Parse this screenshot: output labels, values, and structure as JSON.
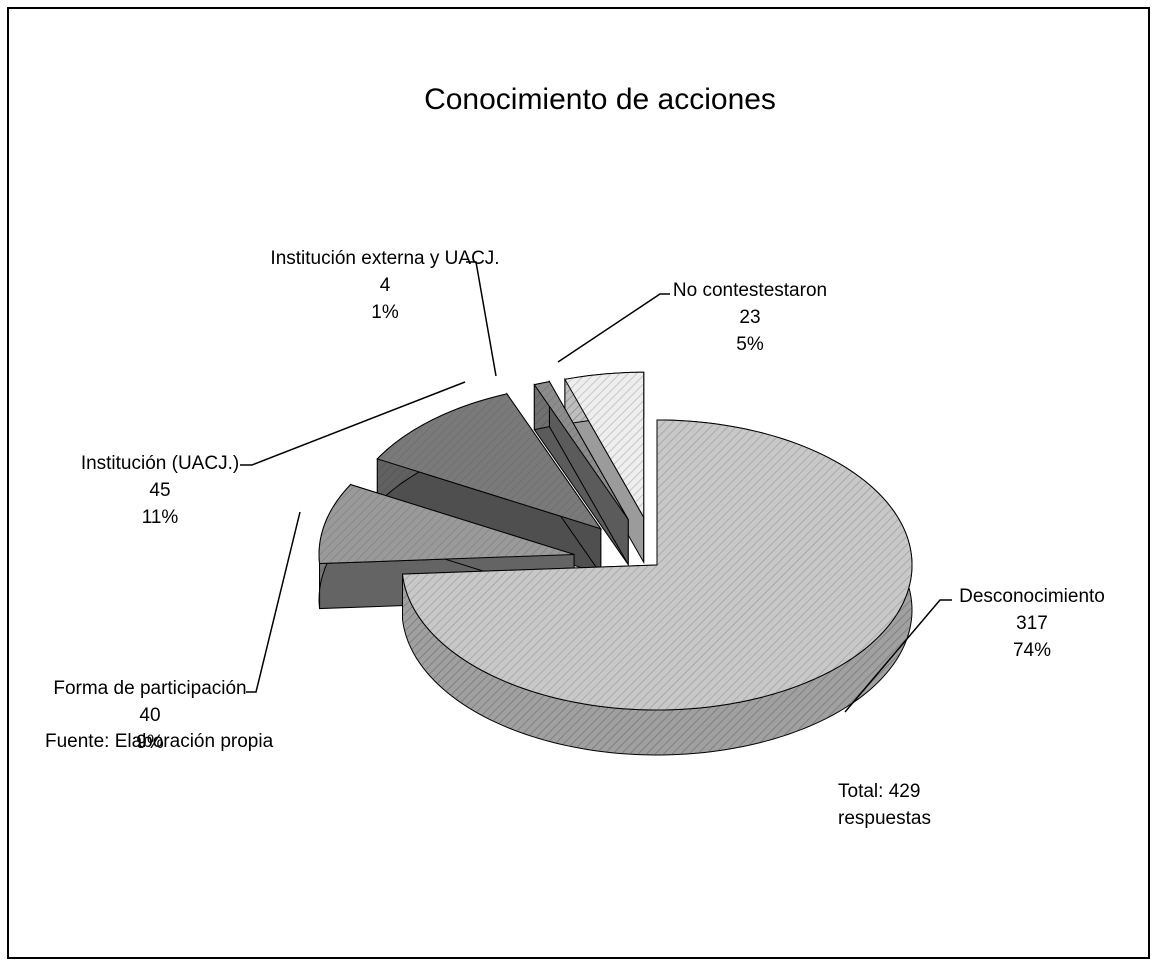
{
  "chart_data": {
    "type": "pie3d",
    "title": "Conocimiento de acciones",
    "categories": [
      "Desconocimiento",
      "Forma de participación",
      "Institución (UACJ.)",
      "Institución externa y UACJ.",
      "No contestestaron"
    ],
    "values": [
      74,
      9,
      11,
      1,
      5
    ],
    "value_labels": [
      "74%",
      "9%",
      "11%",
      "1%",
      "5%"
    ],
    "counts": [
      317,
      40,
      45,
      4,
      23
    ],
    "colors": [
      "#c8c8c8",
      "#9a9a9a",
      "#7a7a7a",
      "#8c8c8c",
      "#eeeeee"
    ],
    "annotation": "Total: 429 respuestas",
    "source": "Fuente: Elaboración propia"
  }
}
